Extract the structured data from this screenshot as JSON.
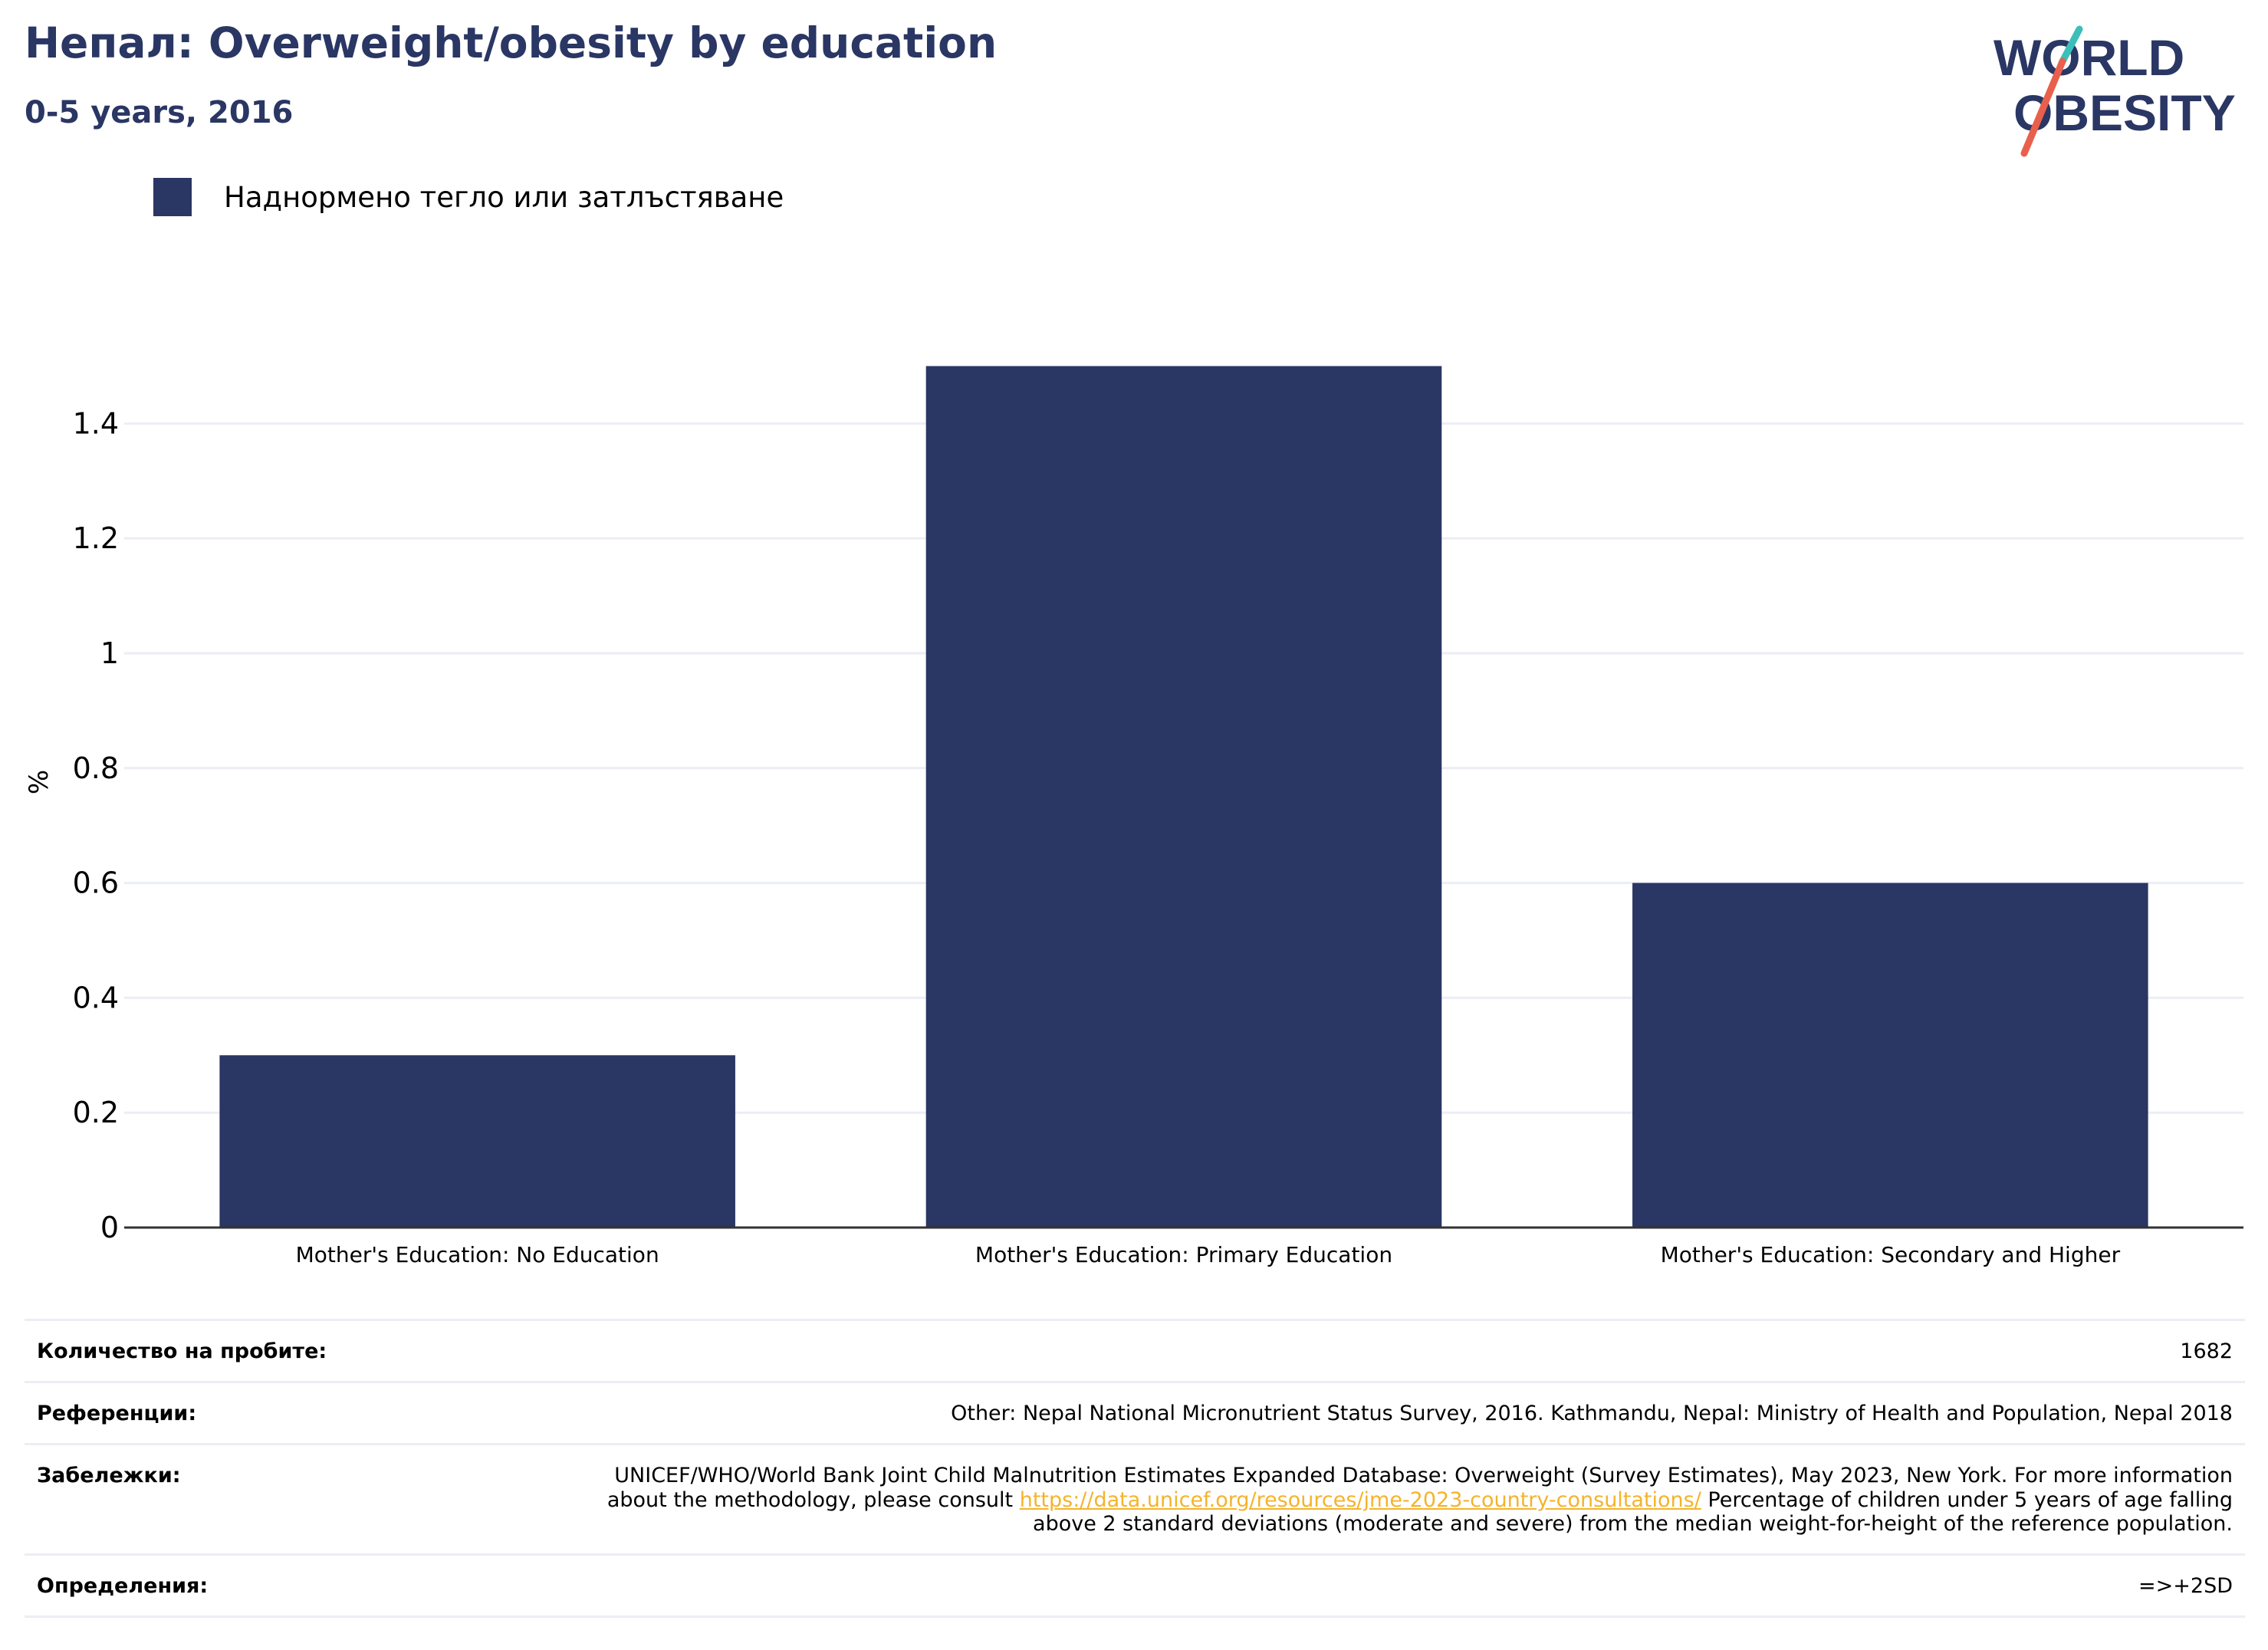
{
  "header": {
    "title": "Непал: Overweight/obesity by education",
    "subtitle": "0-5 years, 2016"
  },
  "logo": {
    "line1": "WORLD",
    "line2": "OBESITY"
  },
  "legend": {
    "label": "Наднормено тегло или затлъстяване",
    "color": "#2a3663"
  },
  "chart_data": {
    "type": "bar",
    "title": "Непал: Overweight/obesity by education",
    "subtitle": "0-5 years, 2016",
    "categories": [
      "Mother's Education: No Education",
      "Mother's Education: Primary Education",
      "Mother's Education: Secondary and Higher"
    ],
    "series": [
      {
        "name": "Наднормено тегло или затлъстяване",
        "values": [
          0.3,
          1.5,
          0.6
        ],
        "color": "#2a3663"
      }
    ],
    "xlabel": "",
    "ylabel": "%",
    "ylim": [
      0,
      1.55
    ],
    "yticks": [
      0,
      0.2,
      0.4,
      0.6,
      0.8,
      1,
      1.2,
      1.4
    ],
    "ytick_labels": [
      "0",
      "0.2",
      "0.4",
      "0.6",
      "0.8",
      "1",
      "1.2",
      "1.4"
    ],
    "grid": true,
    "legend_position": "top-left"
  },
  "meta": {
    "sample_label": "Количество на пробите:",
    "sample_value": "1682",
    "references_label": "Референции:",
    "references_value": "Other: Nepal National Micronutrient Status Survey, 2016. Kathmandu, Nepal: Ministry of Health and Population, Nepal 2018",
    "notes_label": "Забележки:",
    "notes_text_before": "UNICEF/WHO/World Bank Joint Child Malnutrition Estimates Expanded Database: Overweight (Survey Estimates), May 2023, New York. For more information about the methodology, please consult ",
    "notes_link": "https://data.unicef.org/resources/jme-2023-country-consultations/",
    "notes_text_after": " Percentage of children under 5 years of age falling above 2 standard deviations (moderate and severe) from the median weight-for-height of the reference population.",
    "definitions_label": "Определения:",
    "definitions_value": "=>+2SD"
  }
}
